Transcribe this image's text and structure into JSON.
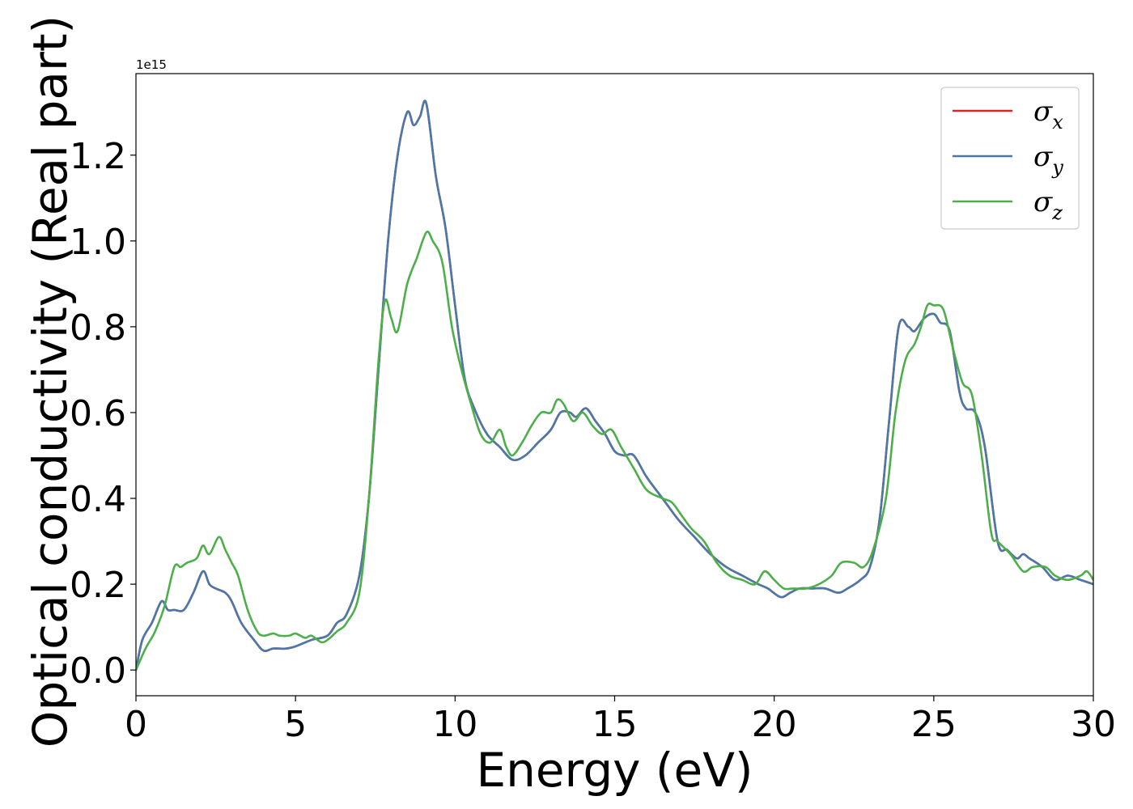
{
  "chart_data": {
    "type": "line",
    "title": "",
    "xlabel": "Energy (eV)",
    "ylabel": "Optical conductivity (Real part)",
    "y_offset_label": "1e15",
    "y_scale_factor": 1000000000000000.0,
    "xlim": [
      0,
      30
    ],
    "ylim": [
      -0.06,
      1.39
    ],
    "xticks": [
      0,
      5,
      10,
      15,
      20,
      25,
      30
    ],
    "xtick_labels": [
      "0",
      "5",
      "10",
      "15",
      "20",
      "25",
      "30"
    ],
    "yticks": [
      0.0,
      0.2,
      0.4,
      0.6,
      0.8,
      1.0,
      1.2
    ],
    "ytick_labels": [
      "0.0",
      "0.2",
      "0.4",
      "0.6",
      "0.8",
      "1.0",
      "1.2"
    ],
    "grid": false,
    "legend_position": "top-right",
    "series": [
      {
        "name": "σx",
        "label_base": "σ",
        "label_sub": "x",
        "color": "#d62728",
        "x": [
          0,
          0.2,
          0.5,
          0.8,
          1.0,
          1.2,
          1.5,
          1.8,
          2.1,
          2.3,
          2.5,
          2.8,
          3.0,
          3.3,
          3.7,
          4.0,
          4.3,
          4.7,
          5.0,
          5.5,
          6.0,
          6.3,
          6.6,
          7.0,
          7.3,
          7.6,
          7.9,
          8.2,
          8.5,
          8.7,
          8.9,
          9.1,
          9.4,
          9.7,
          10.0,
          10.3,
          10.6,
          11.0,
          11.4,
          11.8,
          12.2,
          12.6,
          13.0,
          13.3,
          13.6,
          13.8,
          14.1,
          14.4,
          14.7,
          15.0,
          15.3,
          15.6,
          16.0,
          16.5,
          17.0,
          17.5,
          18.0,
          18.5,
          19.0,
          19.5,
          19.8,
          20.2,
          20.5,
          20.8,
          21.2,
          21.6,
          22.0,
          22.3,
          22.7,
          23.0,
          23.3,
          23.6,
          23.9,
          24.2,
          24.4,
          24.7,
          25.0,
          25.2,
          25.5,
          25.8,
          26.0,
          26.3,
          26.6,
          27.0,
          27.3,
          27.6,
          27.8,
          28.0,
          28.4,
          28.8,
          29.2,
          29.6,
          30.0
        ],
        "values": [
          0.0,
          0.07,
          0.11,
          0.16,
          0.14,
          0.14,
          0.14,
          0.18,
          0.23,
          0.2,
          0.19,
          0.18,
          0.16,
          0.11,
          0.07,
          0.045,
          0.05,
          0.05,
          0.055,
          0.07,
          0.08,
          0.11,
          0.13,
          0.22,
          0.4,
          0.7,
          1.0,
          1.2,
          1.3,
          1.27,
          1.29,
          1.32,
          1.15,
          1.03,
          0.85,
          0.68,
          0.61,
          0.55,
          0.52,
          0.49,
          0.5,
          0.53,
          0.56,
          0.6,
          0.6,
          0.59,
          0.61,
          0.58,
          0.55,
          0.51,
          0.5,
          0.5,
          0.45,
          0.4,
          0.35,
          0.31,
          0.27,
          0.24,
          0.22,
          0.2,
          0.19,
          0.17,
          0.18,
          0.19,
          0.19,
          0.19,
          0.18,
          0.19,
          0.21,
          0.24,
          0.35,
          0.58,
          0.8,
          0.8,
          0.79,
          0.82,
          0.83,
          0.81,
          0.79,
          0.65,
          0.61,
          0.6,
          0.52,
          0.3,
          0.28,
          0.26,
          0.27,
          0.26,
          0.24,
          0.21,
          0.22,
          0.21,
          0.2
        ]
      },
      {
        "name": "σy",
        "label_base": "σ",
        "label_sub": "y",
        "color": "#4a78a8",
        "x": [
          0,
          0.2,
          0.5,
          0.8,
          1.0,
          1.2,
          1.5,
          1.8,
          2.1,
          2.3,
          2.5,
          2.8,
          3.0,
          3.3,
          3.7,
          4.0,
          4.3,
          4.7,
          5.0,
          5.5,
          6.0,
          6.3,
          6.6,
          7.0,
          7.3,
          7.6,
          7.9,
          8.2,
          8.5,
          8.7,
          8.9,
          9.1,
          9.4,
          9.7,
          10.0,
          10.3,
          10.6,
          11.0,
          11.4,
          11.8,
          12.2,
          12.6,
          13.0,
          13.3,
          13.6,
          13.8,
          14.1,
          14.4,
          14.7,
          15.0,
          15.3,
          15.6,
          16.0,
          16.5,
          17.0,
          17.5,
          18.0,
          18.5,
          19.0,
          19.5,
          19.8,
          20.2,
          20.5,
          20.8,
          21.2,
          21.6,
          22.0,
          22.3,
          22.7,
          23.0,
          23.3,
          23.6,
          23.9,
          24.2,
          24.4,
          24.7,
          25.0,
          25.2,
          25.5,
          25.8,
          26.0,
          26.3,
          26.6,
          27.0,
          27.3,
          27.6,
          27.8,
          28.0,
          28.4,
          28.8,
          29.2,
          29.6,
          30.0
        ],
        "values": [
          0.0,
          0.07,
          0.11,
          0.16,
          0.14,
          0.14,
          0.14,
          0.18,
          0.23,
          0.2,
          0.19,
          0.18,
          0.16,
          0.11,
          0.07,
          0.045,
          0.05,
          0.05,
          0.055,
          0.07,
          0.08,
          0.11,
          0.13,
          0.22,
          0.4,
          0.7,
          1.0,
          1.2,
          1.3,
          1.27,
          1.29,
          1.32,
          1.15,
          1.03,
          0.85,
          0.68,
          0.61,
          0.55,
          0.52,
          0.49,
          0.5,
          0.53,
          0.56,
          0.6,
          0.6,
          0.59,
          0.61,
          0.58,
          0.55,
          0.51,
          0.5,
          0.5,
          0.45,
          0.4,
          0.35,
          0.31,
          0.27,
          0.24,
          0.22,
          0.2,
          0.19,
          0.17,
          0.18,
          0.19,
          0.19,
          0.19,
          0.18,
          0.19,
          0.21,
          0.24,
          0.35,
          0.58,
          0.8,
          0.8,
          0.79,
          0.82,
          0.83,
          0.81,
          0.79,
          0.65,
          0.61,
          0.6,
          0.52,
          0.3,
          0.28,
          0.26,
          0.27,
          0.26,
          0.24,
          0.21,
          0.22,
          0.21,
          0.2
        ]
      },
      {
        "name": "σz",
        "label_base": "σ",
        "label_sub": "z",
        "color": "#4daf4a",
        "x": [
          0,
          0.3,
          0.6,
          0.9,
          1.2,
          1.4,
          1.6,
          1.9,
          2.1,
          2.3,
          2.6,
          2.8,
          3.0,
          3.2,
          3.5,
          3.8,
          4.0,
          4.3,
          4.5,
          4.8,
          5.0,
          5.3,
          5.5,
          5.8,
          6.0,
          6.3,
          6.6,
          7.0,
          7.3,
          7.6,
          7.8,
          8.0,
          8.2,
          8.5,
          8.8,
          9.1,
          9.3,
          9.6,
          9.9,
          10.2,
          10.5,
          10.8,
          11.1,
          11.4,
          11.6,
          11.8,
          12.1,
          12.4,
          12.7,
          13.0,
          13.2,
          13.4,
          13.7,
          14.0,
          14.3,
          14.6,
          14.9,
          15.2,
          15.6,
          16.0,
          16.5,
          16.8,
          17.1,
          17.4,
          17.8,
          18.2,
          18.6,
          19.0,
          19.4,
          19.7,
          20.0,
          20.3,
          20.6,
          21.0,
          21.4,
          21.8,
          22.1,
          22.5,
          22.8,
          23.1,
          23.5,
          23.8,
          24.1,
          24.4,
          24.6,
          24.8,
          25.0,
          25.3,
          25.6,
          25.9,
          26.2,
          26.5,
          26.8,
          27.0,
          27.4,
          27.8,
          28.1,
          28.5,
          28.8,
          29.2,
          29.6,
          29.8,
          30.0
        ],
        "values": [
          0.0,
          0.05,
          0.09,
          0.15,
          0.24,
          0.24,
          0.25,
          0.26,
          0.29,
          0.27,
          0.31,
          0.28,
          0.25,
          0.22,
          0.14,
          0.09,
          0.08,
          0.085,
          0.08,
          0.08,
          0.085,
          0.075,
          0.08,
          0.065,
          0.07,
          0.09,
          0.11,
          0.18,
          0.4,
          0.72,
          0.86,
          0.82,
          0.79,
          0.9,
          0.96,
          1.02,
          1.0,
          0.95,
          0.8,
          0.7,
          0.62,
          0.55,
          0.53,
          0.56,
          0.52,
          0.5,
          0.53,
          0.57,
          0.6,
          0.6,
          0.63,
          0.62,
          0.58,
          0.6,
          0.57,
          0.55,
          0.56,
          0.52,
          0.47,
          0.42,
          0.4,
          0.39,
          0.36,
          0.33,
          0.3,
          0.25,
          0.22,
          0.21,
          0.2,
          0.23,
          0.21,
          0.19,
          0.19,
          0.19,
          0.2,
          0.22,
          0.25,
          0.25,
          0.24,
          0.28,
          0.4,
          0.6,
          0.72,
          0.76,
          0.8,
          0.85,
          0.85,
          0.84,
          0.75,
          0.67,
          0.64,
          0.5,
          0.32,
          0.3,
          0.27,
          0.23,
          0.24,
          0.24,
          0.22,
          0.21,
          0.22,
          0.23,
          0.21
        ]
      }
    ]
  }
}
